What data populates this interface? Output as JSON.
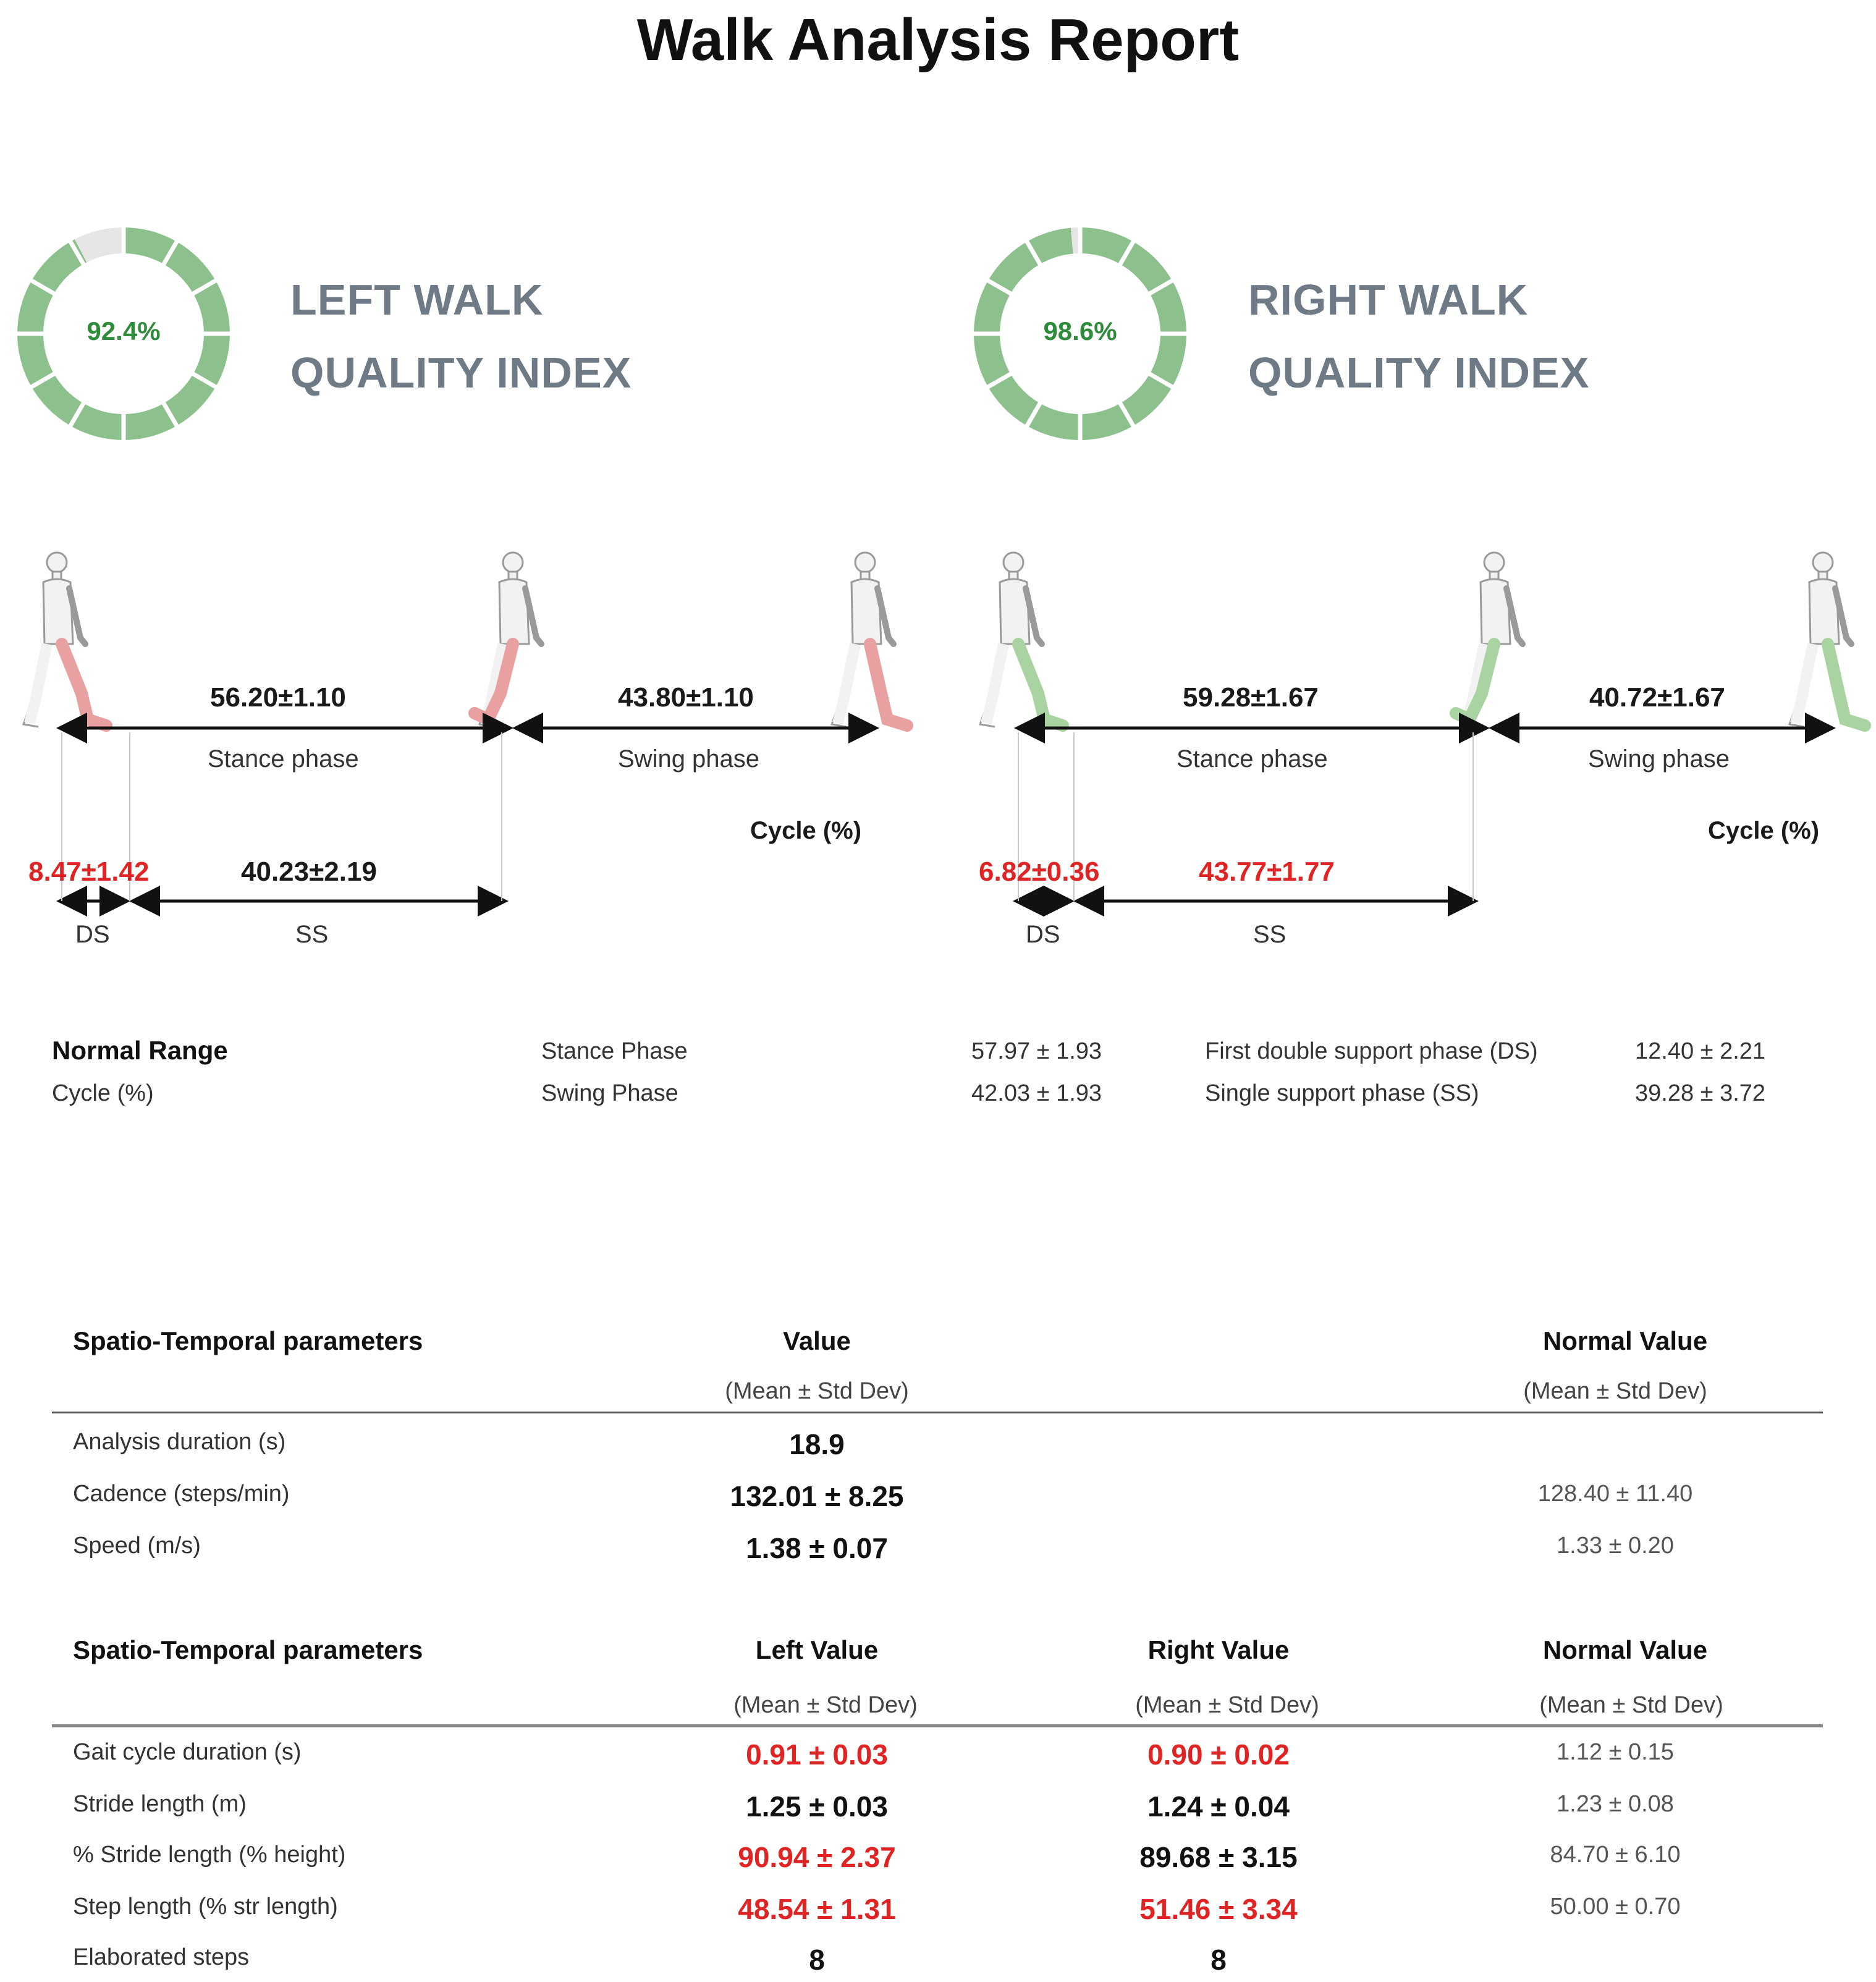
{
  "title": "Walk Analysis Report",
  "left_index": {
    "value_text": "92.4%",
    "value": 92.4,
    "label_line1": "LEFT WALK",
    "label_line2": "QUALITY INDEX"
  },
  "right_index": {
    "value_text": "98.6%",
    "value": 98.6,
    "label_line1": "RIGHT WALK",
    "label_line2": "QUALITY INDEX"
  },
  "colors": {
    "donut_fill": "#8cc08c",
    "donut_empty": "#e6e6e6",
    "donut_text": "#2e8b3a",
    "abnormal": "#e02424",
    "left_leg": "#e8a0a0",
    "right_leg": "#a9d3a0"
  },
  "left_cycle": {
    "stance_value": "56.20±1.10",
    "stance_label": "Stance phase",
    "swing_value": "43.80±1.10",
    "swing_label": "Swing phase",
    "cycle_label": "Cycle (%)",
    "ds_value": "8.47±1.42",
    "ds_label": "DS",
    "ss_value": "40.23±2.19",
    "ss_label": "SS"
  },
  "right_cycle": {
    "stance_value": "59.28±1.67",
    "stance_label": "Stance phase",
    "swing_value": "40.72±1.67",
    "swing_label": "Swing phase",
    "cycle_label": "Cycle (%)",
    "ds_value": "6.82±0.36",
    "ds_label": "DS",
    "ss_value": "43.77±1.77",
    "ss_label": "SS"
  },
  "normal_range": {
    "heading": "Normal Range",
    "unit": "Cycle (%)",
    "stance_label": "Stance Phase",
    "stance_value": "57.97 ± 1.93",
    "swing_label": "Swing Phase",
    "swing_value": "42.03 ± 1.93",
    "ds_label": "First double support phase (DS)",
    "ds_value": "12.40 ± 2.21",
    "ss_label": "Single support phase (SS)",
    "ss_value": "39.28 ± 3.72"
  },
  "table1": {
    "header": {
      "name": "Spatio-Temporal parameters",
      "value": "Value",
      "value_sub": "(Mean ± Std Dev)",
      "normal": "Normal Value",
      "normal_sub": "(Mean ± Std Dev)"
    },
    "rows": [
      {
        "name": "Analysis duration (s)",
        "value": "18.9",
        "normal": ""
      },
      {
        "name": "Cadence (steps/min)",
        "value": "132.01 ± 8.25",
        "normal": "128.40 ± 11.40"
      },
      {
        "name": "Speed (m/s)",
        "value": "1.38 ± 0.07",
        "normal": "1.33 ± 0.20"
      }
    ]
  },
  "table2": {
    "header": {
      "name": "Spatio-Temporal parameters",
      "left": "Left Value",
      "left_sub": "(Mean ± Std Dev)",
      "right": "Right Value",
      "right_sub": "(Mean ± Std Dev)",
      "normal": "Normal Value",
      "normal_sub": "(Mean ± Std Dev)"
    },
    "rows": [
      {
        "name": "Gait cycle duration (s)",
        "left": "0.91 ± 0.03",
        "right": "0.90 ± 0.02",
        "normal": "1.12 ± 0.15"
      },
      {
        "name": "Stride length (m)",
        "left": "1.25 ± 0.03",
        "right": "1.24 ± 0.04",
        "normal": "1.23 ± 0.08"
      },
      {
        "name": "% Stride length (% height)",
        "left": "90.94 ± 2.37",
        "right": "89.68 ± 3.15",
        "normal": "84.70 ± 6.10"
      },
      {
        "name": "Step length (% str length)",
        "left": "48.54 ± 1.31",
        "right": "51.46 ± 3.34",
        "normal": "50.00 ± 0.70"
      },
      {
        "name": "Elaborated steps",
        "left": "8",
        "right": "8",
        "normal": ""
      }
    ]
  }
}
